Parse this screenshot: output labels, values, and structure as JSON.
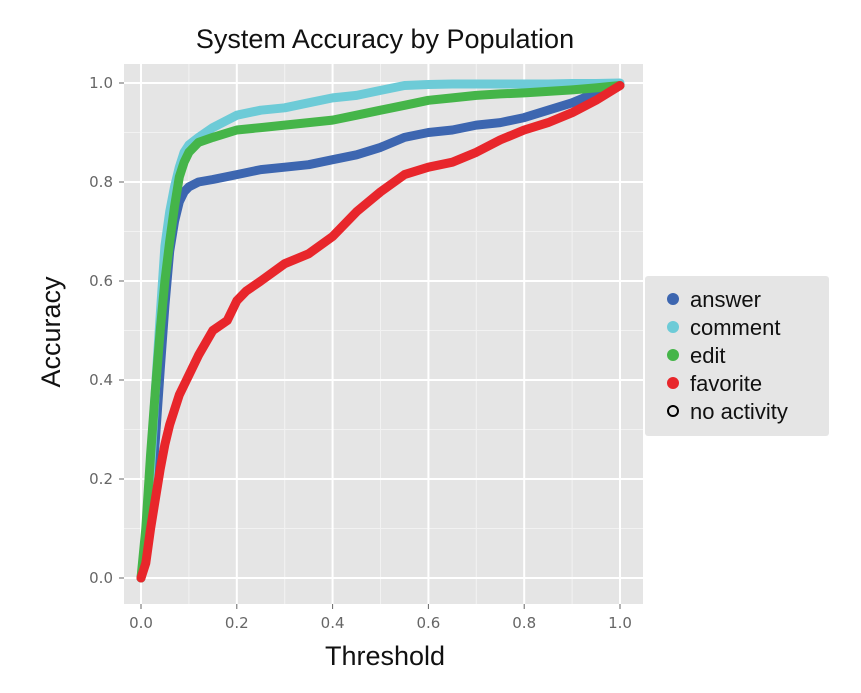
{
  "chart_data": {
    "type": "line",
    "title": "System Accuracy by Population",
    "xlabel": "Threshold",
    "ylabel": "Accuracy",
    "xlim": [
      0.0,
      1.0
    ],
    "ylim": [
      0.0,
      1.0
    ],
    "xticks": [
      "0.0",
      "0.2",
      "0.4",
      "0.6",
      "0.8",
      "1.0"
    ],
    "yticks": [
      "0.0",
      "0.2",
      "0.4",
      "0.6",
      "0.8",
      "1.0"
    ],
    "grid": true,
    "legend_position": "right",
    "colors": {
      "panel_background": "#e5e5e5",
      "grid": "#ffffff",
      "legend_background": "#e5e5e5"
    },
    "series": [
      {
        "name": "answer",
        "color": "#3d66b0",
        "marker": "filled",
        "x": [
          0.0,
          0.01,
          0.02,
          0.03,
          0.04,
          0.05,
          0.06,
          0.07,
          0.08,
          0.09,
          0.1,
          0.12,
          0.15,
          0.2,
          0.25,
          0.3,
          0.35,
          0.4,
          0.45,
          0.5,
          0.55,
          0.6,
          0.65,
          0.7,
          0.75,
          0.8,
          0.85,
          0.9,
          0.95,
          1.0
        ],
        "values": [
          0.0,
          0.05,
          0.15,
          0.28,
          0.42,
          0.55,
          0.66,
          0.72,
          0.76,
          0.78,
          0.79,
          0.8,
          0.805,
          0.815,
          0.825,
          0.83,
          0.835,
          0.845,
          0.855,
          0.87,
          0.89,
          0.9,
          0.905,
          0.915,
          0.92,
          0.93,
          0.945,
          0.96,
          0.98,
          0.995
        ]
      },
      {
        "name": "comment",
        "color": "#6dcbd7",
        "marker": "filled",
        "x": [
          0.0,
          0.01,
          0.02,
          0.03,
          0.04,
          0.05,
          0.06,
          0.07,
          0.08,
          0.09,
          0.1,
          0.12,
          0.15,
          0.2,
          0.25,
          0.3,
          0.35,
          0.4,
          0.45,
          0.5,
          0.55,
          0.6,
          0.65,
          0.7,
          0.75,
          0.8,
          0.85,
          0.9,
          0.95,
          1.0
        ],
        "values": [
          0.0,
          0.08,
          0.22,
          0.38,
          0.53,
          0.67,
          0.74,
          0.79,
          0.83,
          0.86,
          0.875,
          0.89,
          0.91,
          0.935,
          0.945,
          0.95,
          0.96,
          0.97,
          0.975,
          0.985,
          0.995,
          0.997,
          0.998,
          0.998,
          0.998,
          0.998,
          0.998,
          0.999,
          0.999,
          1.0
        ]
      },
      {
        "name": "edit",
        "color": "#45b549",
        "marker": "filled",
        "x": [
          0.0,
          0.01,
          0.02,
          0.03,
          0.04,
          0.05,
          0.06,
          0.07,
          0.08,
          0.09,
          0.1,
          0.12,
          0.15,
          0.2,
          0.25,
          0.3,
          0.35,
          0.4,
          0.45,
          0.5,
          0.55,
          0.6,
          0.65,
          0.7,
          0.75,
          0.8,
          0.85,
          0.9,
          0.95,
          1.0
        ],
        "values": [
          0.0,
          0.1,
          0.25,
          0.38,
          0.5,
          0.6,
          0.68,
          0.75,
          0.81,
          0.84,
          0.86,
          0.88,
          0.89,
          0.905,
          0.91,
          0.915,
          0.92,
          0.925,
          0.935,
          0.945,
          0.955,
          0.965,
          0.97,
          0.975,
          0.978,
          0.98,
          0.983,
          0.986,
          0.99,
          0.995
        ]
      },
      {
        "name": "favorite",
        "color": "#e8262b",
        "marker": "filled",
        "x": [
          0.0,
          0.01,
          0.02,
          0.03,
          0.04,
          0.05,
          0.06,
          0.07,
          0.08,
          0.1,
          0.12,
          0.15,
          0.18,
          0.2,
          0.22,
          0.25,
          0.3,
          0.35,
          0.4,
          0.45,
          0.5,
          0.55,
          0.6,
          0.65,
          0.7,
          0.75,
          0.8,
          0.85,
          0.9,
          0.95,
          1.0
        ],
        "values": [
          0.0,
          0.03,
          0.1,
          0.16,
          0.22,
          0.27,
          0.31,
          0.34,
          0.37,
          0.41,
          0.45,
          0.5,
          0.52,
          0.56,
          0.58,
          0.6,
          0.635,
          0.655,
          0.69,
          0.74,
          0.78,
          0.815,
          0.83,
          0.84,
          0.86,
          0.885,
          0.905,
          0.92,
          0.94,
          0.965,
          0.995
        ]
      },
      {
        "name": "no activity",
        "color": "#000000",
        "marker": "open"
      }
    ]
  }
}
